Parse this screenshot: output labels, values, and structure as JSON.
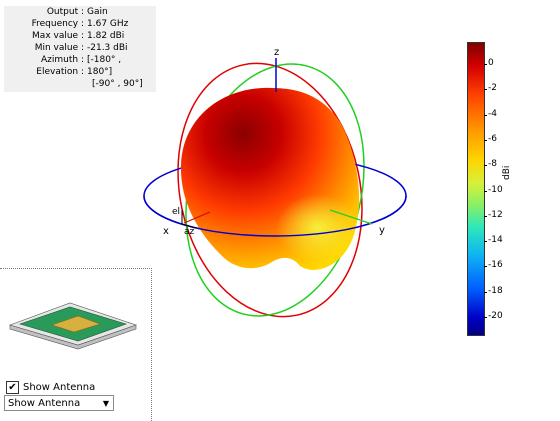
{
  "info": {
    "rows": [
      {
        "label": "Output :",
        "value": "Gain"
      },
      {
        "label": "Frequency :",
        "value": "1.67 GHz"
      },
      {
        "label": "Max value :",
        "value": "1.82 dBi"
      },
      {
        "label": "Min value :",
        "value": "-21.3 dBi"
      },
      {
        "label": "Azimuth :",
        "value": "[-180° ,"
      },
      {
        "label": "Elevation :",
        "value": "180°]"
      }
    ],
    "continuation": "[-90° , 90°]"
  },
  "axes": {
    "z": "z",
    "x": "x",
    "y": "y",
    "el": "el",
    "az": "az"
  },
  "colorbar": {
    "ticks": [
      "0",
      "-2",
      "-4",
      "-6",
      "-8",
      "-10",
      "-12",
      "-14",
      "-16",
      "-18",
      "-20"
    ],
    "unit": "dBi",
    "colors": [
      "#7f0000",
      "#ff4400",
      "#ffd400",
      "#8ef060",
      "#10b8f0",
      "#000083"
    ]
  },
  "controls": {
    "show_antenna_label": "Show Antenna",
    "show_antenna_checked": true,
    "dropdown_value": "Show Antenna"
  }
}
